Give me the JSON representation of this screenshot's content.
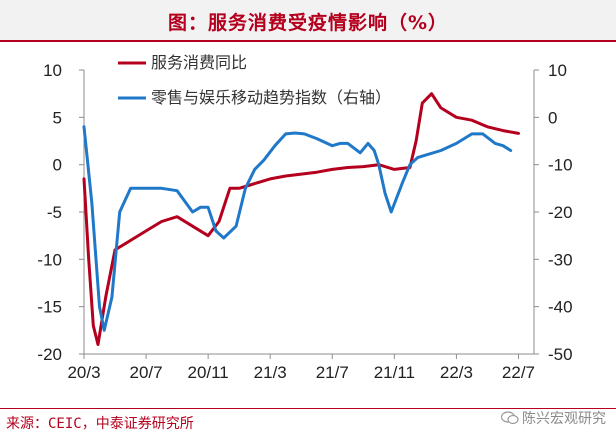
{
  "title": "图：服务消费受疫情影响（%）",
  "source": "来源：CEIC，中泰证券研究所",
  "watermark": "陈兴宏观研究",
  "watermark_icon": "wechat-icon",
  "colors": {
    "title": "#b4001e",
    "service": "#b4001e",
    "retail": "#1f78c8",
    "axis": "#8c8c8c"
  },
  "chart_data": {
    "type": "line",
    "title": "",
    "legend_position": "top-center",
    "grid": false,
    "x_tick_labels": [
      "20/3",
      "20/7",
      "20/11",
      "21/3",
      "21/7",
      "21/11",
      "22/3",
      "22/7"
    ],
    "y_left": {
      "range": [
        -20,
        10
      ],
      "ticks": [
        -20,
        -15,
        -10,
        -5,
        0,
        5,
        10
      ]
    },
    "y_right": {
      "range": [
        -50,
        10
      ],
      "ticks": [
        -50,
        -40,
        -30,
        -20,
        -10,
        0,
        10
      ]
    },
    "series": [
      {
        "name": "服务消费同比",
        "axis": "left",
        "color": "#b4001e",
        "points": [
          [
            0.0,
            -1.5
          ],
          [
            0.3,
            -10.0
          ],
          [
            0.6,
            -17.0
          ],
          [
            0.9,
            -19.0
          ],
          [
            1.4,
            -14.0
          ],
          [
            2.0,
            -9.0
          ],
          [
            3.0,
            -8.0
          ],
          [
            4.0,
            -7.0
          ],
          [
            5.0,
            -6.0
          ],
          [
            6.0,
            -5.5
          ],
          [
            7.0,
            -6.5
          ],
          [
            8.0,
            -7.5
          ],
          [
            8.7,
            -6.0
          ],
          [
            9.4,
            -2.5
          ],
          [
            10.0,
            -2.5
          ],
          [
            11.0,
            -2.0
          ],
          [
            12.0,
            -1.5
          ],
          [
            13.0,
            -1.2
          ],
          [
            14.0,
            -1.0
          ],
          [
            15.0,
            -0.8
          ],
          [
            16.0,
            -0.5
          ],
          [
            17.0,
            -0.3
          ],
          [
            18.0,
            -0.2
          ],
          [
            19.0,
            0.0
          ],
          [
            20.0,
            -0.5
          ],
          [
            21.0,
            -0.3
          ],
          [
            21.4,
            2.5
          ],
          [
            21.8,
            6.5
          ],
          [
            22.4,
            7.5
          ],
          [
            23.0,
            6.0
          ],
          [
            24.0,
            5.0
          ],
          [
            25.0,
            4.7
          ],
          [
            26.0,
            4.0
          ],
          [
            27.0,
            3.6
          ],
          [
            28.0,
            3.3
          ]
        ]
      },
      {
        "name": "零售与娱乐移动趋势指数（右轴）",
        "axis": "right",
        "color": "#1f78c8",
        "points": [
          [
            0.0,
            -2.0
          ],
          [
            0.5,
            -18.0
          ],
          [
            1.0,
            -40.0
          ],
          [
            1.3,
            -45.0
          ],
          [
            1.8,
            -38.0
          ],
          [
            2.3,
            -20.0
          ],
          [
            3.0,
            -15.0
          ],
          [
            4.0,
            -15.0
          ],
          [
            5.0,
            -15.0
          ],
          [
            6.0,
            -15.5
          ],
          [
            7.0,
            -20.0
          ],
          [
            7.5,
            -19.0
          ],
          [
            8.0,
            -19.0
          ],
          [
            8.5,
            -24.0
          ],
          [
            9.0,
            -25.5
          ],
          [
            9.8,
            -23.0
          ],
          [
            10.4,
            -15.0
          ],
          [
            11.0,
            -11.0
          ],
          [
            11.6,
            -9.0
          ],
          [
            12.3,
            -6.0
          ],
          [
            13.0,
            -3.5
          ],
          [
            13.6,
            -3.3
          ],
          [
            14.2,
            -3.5
          ],
          [
            15.0,
            -4.5
          ],
          [
            16.0,
            -6.0
          ],
          [
            16.5,
            -5.5
          ],
          [
            17.0,
            -5.5
          ],
          [
            17.8,
            -7.5
          ],
          [
            18.3,
            -5.5
          ],
          [
            18.7,
            -7.0
          ],
          [
            19.0,
            -10.0
          ],
          [
            19.4,
            -16.0
          ],
          [
            19.8,
            -20.0
          ],
          [
            20.5,
            -14.0
          ],
          [
            21.0,
            -10.0
          ],
          [
            21.5,
            -8.5
          ],
          [
            22.0,
            -8.0
          ],
          [
            23.0,
            -7.0
          ],
          [
            24.0,
            -5.5
          ],
          [
            25.0,
            -3.5
          ],
          [
            25.7,
            -3.5
          ],
          [
            26.5,
            -5.5
          ],
          [
            27.0,
            -6.0
          ],
          [
            27.5,
            -7.0
          ]
        ]
      }
    ]
  }
}
